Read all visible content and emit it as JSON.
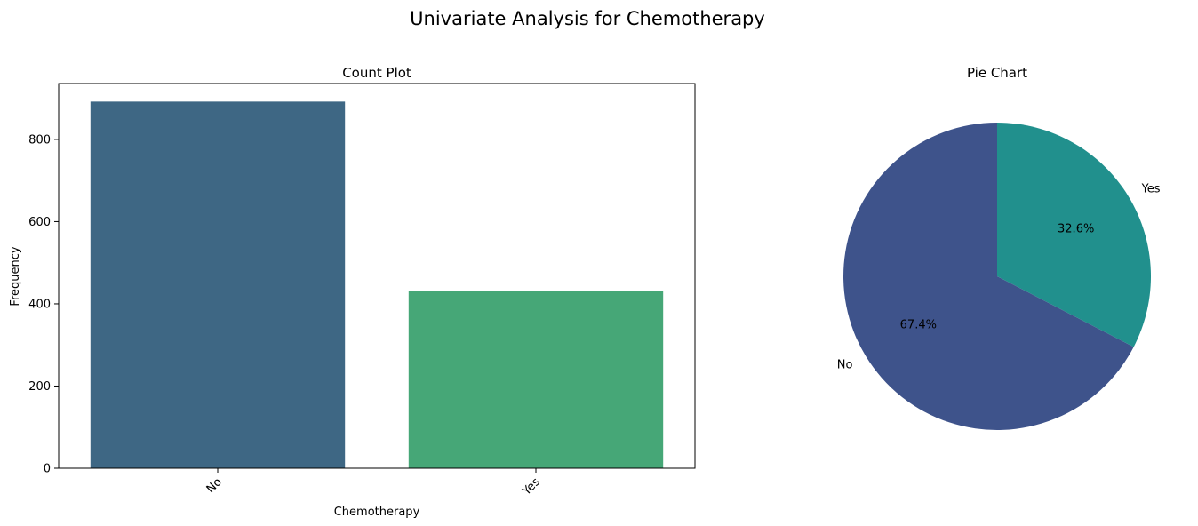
{
  "suptitle": "Univariate Analysis for Chemotherapy",
  "chart_data": [
    {
      "type": "bar",
      "title": "Count Plot",
      "xlabel": "Chemotherapy",
      "ylabel": "Frequency",
      "categories": [
        "No",
        "Yes"
      ],
      "values": [
        892,
        431
      ],
      "colors": [
        "#3e6784",
        "#46a777"
      ],
      "ylim": [
        0,
        936
      ],
      "yticks": [
        0,
        200,
        400,
        600,
        800
      ],
      "grid": false,
      "xtick_rotation_deg": 45
    },
    {
      "type": "pie",
      "title": "Pie Chart",
      "labels": [
        "Yes",
        "No"
      ],
      "values": [
        32.6,
        67.4
      ],
      "percent_labels": [
        "32.6%",
        "67.4%"
      ],
      "colors": [
        "#21908d",
        "#3e538b"
      ],
      "start_angle_deg": 90,
      "direction": "clockwise"
    }
  ]
}
